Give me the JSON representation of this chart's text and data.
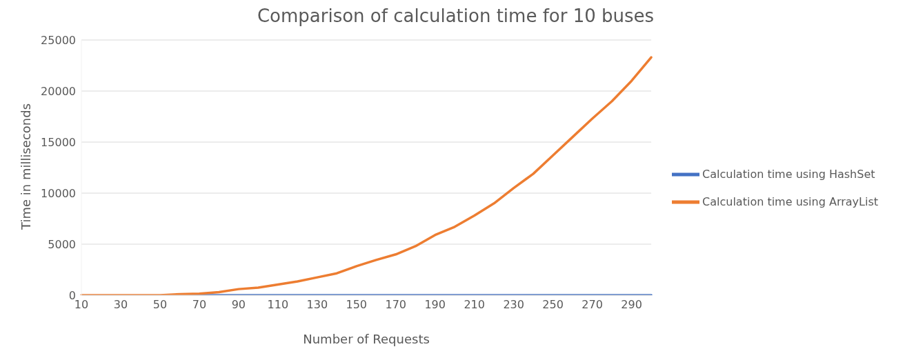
{
  "chart_data": {
    "type": "line",
    "title": "Comparison of calculation time for 10 buses",
    "xlabel": "Number of Requests",
    "ylabel": "Time in milliseconds",
    "categories": [
      "10",
      null,
      "30",
      null,
      "50",
      null,
      "70",
      null,
      "90",
      null,
      "110",
      null,
      "130",
      null,
      "150",
      null,
      "170",
      null,
      "190",
      null,
      "210",
      null,
      "230",
      null,
      "250",
      null,
      "270",
      null,
      "290",
      null
    ],
    "series": [
      {
        "name": "Calculation time using HashSet",
        "color": "#4472c4",
        "values": [
          null,
          null,
          null,
          null,
          null,
          0,
          0,
          0,
          0,
          0,
          0,
          0,
          0,
          0,
          0,
          0,
          0,
          0,
          0,
          0,
          0,
          0,
          0,
          0,
          0,
          0,
          0,
          0,
          0,
          0
        ]
      },
      {
        "name": "Calculation time using ArrayList",
        "color": "#ed7d31",
        "values": [
          0,
          0,
          0,
          0,
          0,
          100,
          150,
          300,
          600,
          750,
          1050,
          1350,
          1750,
          2150,
          2850,
          3450,
          4000,
          4800,
          5900,
          6700,
          7800,
          9000,
          10500,
          11900,
          13700,
          15500,
          17300,
          19000,
          21000,
          23300
        ]
      }
    ],
    "ylim": [
      0,
      25000
    ],
    "yticks": [
      0,
      5000,
      10000,
      15000,
      20000,
      25000
    ],
    "grid": "y",
    "legend": "right",
    "marker": "none",
    "line_style": "solid"
  }
}
